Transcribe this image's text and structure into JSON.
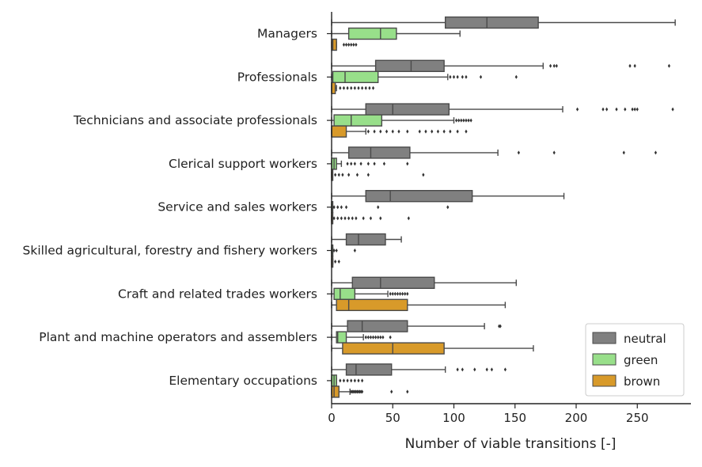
{
  "chart_data": {
    "type": "boxplot",
    "orientation": "horizontal",
    "xlabel": "Number of viable transitions [-]",
    "ylabel": "",
    "xlim": [
      0,
      295
    ],
    "xticks": [
      0,
      50,
      100,
      150,
      200,
      250
    ],
    "grid": false,
    "legend_position": "bottom-right",
    "series": [
      {
        "name": "neutral",
        "color": "#808080"
      },
      {
        "name": "green",
        "color": "#98df8a"
      },
      {
        "name": "brown",
        "color": "#d89a2a"
      }
    ],
    "categories": [
      {
        "label": "Managers",
        "boxes": [
          {
            "series": "neutral",
            "whisker_low": 0,
            "q1": 93,
            "median": 127,
            "q3": 169,
            "whisker_high": 281,
            "outliers": []
          },
          {
            "series": "green",
            "whisker_low": 0,
            "q1": 14,
            "median": 40,
            "q3": 53,
            "whisker_high": 105,
            "outliers": []
          },
          {
            "series": "brown",
            "whisker_low": 0,
            "q1": 0,
            "median": 1,
            "q3": 4,
            "whisker_high": 4,
            "outliers": [
              10,
              12,
              14,
              16,
              18,
              20
            ]
          }
        ]
      },
      {
        "label": "Professionals",
        "boxes": [
          {
            "series": "neutral",
            "whisker_low": 0,
            "q1": 36,
            "median": 65,
            "q3": 92,
            "whisker_high": 173,
            "outliers": [
              179,
              182,
              184,
              244,
              248,
              276
            ]
          },
          {
            "series": "green",
            "whisker_low": 0,
            "q1": 1,
            "median": 11,
            "q3": 38,
            "whisker_high": 95,
            "outliers": [
              97,
              100,
              103,
              107,
              110,
              122,
              151
            ]
          },
          {
            "series": "brown",
            "whisker_low": 0,
            "q1": 0,
            "median": 0,
            "q3": 3,
            "whisker_high": 4,
            "outliers": [
              7,
              10,
              13,
              16,
              19,
              22,
              25,
              28,
              31,
              34
            ]
          }
        ]
      },
      {
        "label": "Technicians and associate professionals",
        "boxes": [
          {
            "series": "neutral",
            "whisker_low": 0,
            "q1": 28,
            "median": 50,
            "q3": 96,
            "whisker_high": 189,
            "outliers": [
              201,
              222,
              225,
              233,
              240,
              246,
              248,
              250,
              279
            ]
          },
          {
            "series": "green",
            "whisker_low": 0,
            "q1": 2,
            "median": 16,
            "q3": 41,
            "whisker_high": 100,
            "outliers": [
              102,
              104,
              106,
              108,
              110,
              112,
              114
            ]
          },
          {
            "series": "brown",
            "whisker_low": 0,
            "q1": 0,
            "median": 0,
            "q3": 12,
            "whisker_high": 28,
            "outliers": [
              30,
              35,
              40,
              45,
              50,
              55,
              62,
              72,
              77,
              82,
              87,
              92,
              97,
              103,
              110
            ]
          }
        ]
      },
      {
        "label": "Clerical support workers",
        "boxes": [
          {
            "series": "neutral",
            "whisker_low": 0,
            "q1": 14,
            "median": 32,
            "q3": 64,
            "whisker_high": 136,
            "outliers": [
              153,
              182,
              239,
              265
            ]
          },
          {
            "series": "green",
            "whisker_low": 0,
            "q1": 0,
            "median": 2,
            "q3": 4,
            "whisker_high": 8,
            "outliers": [
              13,
              16,
              19,
              24,
              30,
              35,
              43,
              62
            ]
          },
          {
            "series": "brown",
            "whisker_low": 0,
            "q1": 0,
            "median": 0,
            "q3": 0,
            "whisker_high": 0,
            "outliers": [
              3,
              6,
              9,
              14,
              21,
              30,
              75
            ]
          }
        ]
      },
      {
        "label": "Service and sales workers",
        "boxes": [
          {
            "series": "neutral",
            "whisker_low": 0,
            "q1": 28,
            "median": 48,
            "q3": 115,
            "whisker_high": 190,
            "outliers": []
          },
          {
            "series": "green",
            "whisker_low": 0,
            "q1": 0,
            "median": 0,
            "q3": 0,
            "whisker_high": 0,
            "outliers": [
              2,
              5,
              8,
              12,
              38,
              95
            ]
          },
          {
            "series": "brown",
            "whisker_low": 0,
            "q1": 0,
            "median": 0,
            "q3": 0,
            "whisker_high": 0,
            "outliers": [
              2,
              5,
              8,
              11,
              14,
              17,
              20,
              26,
              32,
              40,
              63
            ]
          }
        ]
      },
      {
        "label": "Skilled agricultural, forestry and fishery workers",
        "boxes": [
          {
            "series": "neutral",
            "whisker_low": 0,
            "q1": 12,
            "median": 22,
            "q3": 44,
            "whisker_high": 57,
            "outliers": []
          },
          {
            "series": "green",
            "whisker_low": 0,
            "q1": 0,
            "median": 0,
            "q3": 1,
            "whisker_high": 1,
            "outliers": [
              2,
              4,
              19
            ]
          },
          {
            "series": "brown",
            "whisker_low": 0,
            "q1": 0,
            "median": 0,
            "q3": 1,
            "whisker_high": 1,
            "outliers": [
              3,
              6
            ]
          }
        ]
      },
      {
        "label": "Craft and related trades workers",
        "boxes": [
          {
            "series": "neutral",
            "whisker_low": 0,
            "q1": 17,
            "median": 40,
            "q3": 84,
            "whisker_high": 151,
            "outliers": []
          },
          {
            "series": "green",
            "whisker_low": 0,
            "q1": 2,
            "median": 7,
            "q3": 19,
            "whisker_high": 46,
            "outliers": [
              48,
              50,
              52,
              54,
              56,
              58,
              60,
              62
            ]
          },
          {
            "series": "brown",
            "whisker_low": 0,
            "q1": 4,
            "median": 14,
            "q3": 62,
            "whisker_high": 142,
            "outliers": []
          }
        ]
      },
      {
        "label": "Plant and machine operators and assemblers",
        "boxes": [
          {
            "series": "neutral",
            "whisker_low": 0,
            "q1": 13,
            "median": 25,
            "q3": 62,
            "whisker_high": 125,
            "outliers": [
              137,
              138
            ]
          },
          {
            "series": "green",
            "whisker_low": 0,
            "q1": 4,
            "median": 5,
            "q3": 12,
            "whisker_high": 26,
            "outliers": [
              28,
              30,
              32,
              34,
              36,
              38,
              40,
              42,
              48
            ]
          },
          {
            "series": "brown",
            "whisker_low": 0,
            "q1": 9,
            "median": 50,
            "q3": 92,
            "whisker_high": 165,
            "outliers": []
          }
        ]
      },
      {
        "label": "Elementary occupations",
        "boxes": [
          {
            "series": "neutral",
            "whisker_low": 0,
            "q1": 12,
            "median": 20,
            "q3": 49,
            "whisker_high": 93,
            "outliers": [
              103,
              107,
              117,
              127,
              131,
              142
            ]
          },
          {
            "series": "green",
            "whisker_low": 0,
            "q1": 0,
            "median": 2,
            "q3": 4,
            "whisker_high": 4,
            "outliers": [
              7,
              10,
              13,
              16,
              19,
              22,
              25
            ]
          },
          {
            "series": "brown",
            "whisker_low": 0,
            "q1": 0,
            "median": 2,
            "q3": 6,
            "whisker_high": 15,
            "outliers": [
              16,
              17,
              18,
              19,
              20,
              21,
              22,
              23,
              24,
              25,
              49,
              62
            ]
          }
        ]
      }
    ]
  }
}
